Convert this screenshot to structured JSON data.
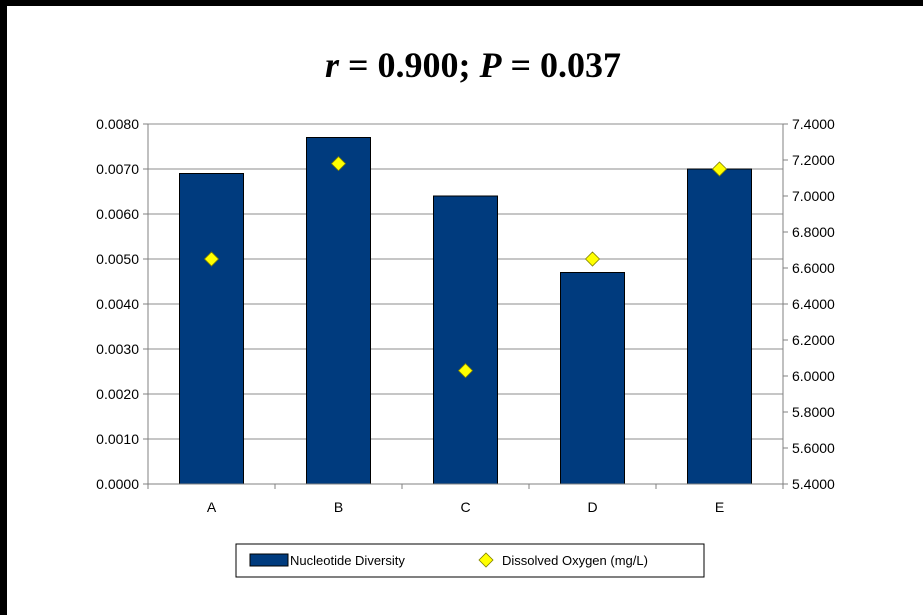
{
  "chart_data": {
    "type": "bar",
    "title_parts": [
      {
        "text": "r",
        "italic": true
      },
      {
        "text": " = 0.900; ",
        "italic": false
      },
      {
        "text": "P",
        "italic": true
      },
      {
        "text": " = 0.037",
        "italic": false
      }
    ],
    "title": "r = 0.900; P = 0.037",
    "categories": [
      "A",
      "B",
      "C",
      "D",
      "E"
    ],
    "series": [
      {
        "name": "Nucleotide Diversity",
        "type": "bar",
        "axis": "left",
        "color": "#003B7E",
        "values": [
          0.0069,
          0.0077,
          0.0064,
          0.0047,
          0.007
        ]
      },
      {
        "name": "Dissolved Oxygen (mg/L)",
        "type": "scatter",
        "axis": "right",
        "color": "#FFFF00",
        "values": [
          6.65,
          7.18,
          6.03,
          6.65,
          7.15
        ]
      }
    ],
    "ylim_left": [
      0,
      0.008
    ],
    "yticks_left": [
      "0.0000",
      "0.0010",
      "0.0020",
      "0.0030",
      "0.0040",
      "0.0050",
      "0.0060",
      "0.0070",
      "0.0080"
    ],
    "ylim_right": [
      5.4,
      7.4
    ],
    "yticks_right": [
      "5.4000",
      "5.6000",
      "5.8000",
      "6.0000",
      "6.2000",
      "6.4000",
      "6.6000",
      "6.8000",
      "7.0000",
      "7.2000",
      "7.4000"
    ],
    "grid": true,
    "legend_position": "bottom"
  }
}
